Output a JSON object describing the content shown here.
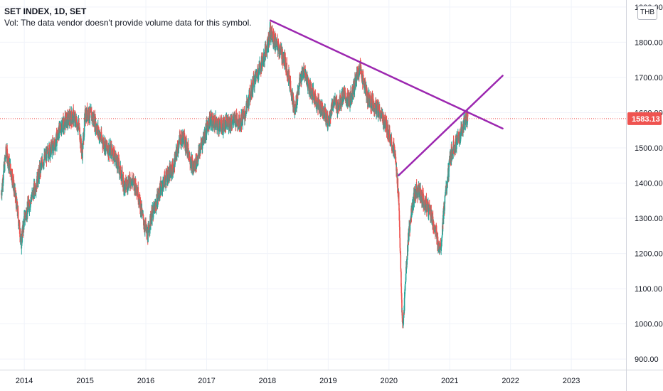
{
  "legend": {
    "title": "SET INDEX, 1D, SET",
    "volume_note": "Vol: The data vendor doesn't provide volume data for this symbol."
  },
  "currency": "THB",
  "last_price_label": "1583.13",
  "colors": {
    "up": "#26a69a",
    "down": "#ef5350",
    "trendline": "#9c27b0",
    "price_line": "#ef5350",
    "grid": "#f0f3fa",
    "axis_line": "#d1d4dc"
  },
  "chart_data": {
    "type": "candlestick",
    "title": "SET INDEX, 1D, SET",
    "y_axis": {
      "ticks": [
        900,
        1000,
        1100,
        1200,
        1300,
        1400,
        1500,
        1600,
        1700,
        1800,
        1900
      ],
      "tick_labels": [
        "900.00",
        "1000.00",
        "1100.00",
        "1200.00",
        "1300.00",
        "1400.00",
        "1500.00",
        "1600.00",
        "1700.00",
        "1800.00",
        "1900.00"
      ],
      "range": [
        870,
        1920
      ]
    },
    "x_axis": {
      "ticks": [
        "2014",
        "2015",
        "2016",
        "2017",
        "2018",
        "2019",
        "2020",
        "2021",
        "2022",
        "2023"
      ],
      "range": [
        2013.6,
        2023.9
      ]
    },
    "last_price": 1583.13,
    "price_path": [
      [
        2013.62,
        1370
      ],
      [
        2013.7,
        1490
      ],
      [
        2013.8,
        1420
      ],
      [
        2013.88,
        1330
      ],
      [
        2013.95,
        1230
      ],
      [
        2014.0,
        1300
      ],
      [
        2014.1,
        1350
      ],
      [
        2014.2,
        1400
      ],
      [
        2014.3,
        1460
      ],
      [
        2014.4,
        1490
      ],
      [
        2014.5,
        1510
      ],
      [
        2014.6,
        1560
      ],
      [
        2014.7,
        1580
      ],
      [
        2014.8,
        1590
      ],
      [
        2014.9,
        1560
      ],
      [
        2014.95,
        1480
      ],
      [
        2015.0,
        1590
      ],
      [
        2015.05,
        1600
      ],
      [
        2015.15,
        1580
      ],
      [
        2015.25,
        1530
      ],
      [
        2015.35,
        1500
      ],
      [
        2015.45,
        1490
      ],
      [
        2015.55,
        1450
      ],
      [
        2015.65,
        1390
      ],
      [
        2015.75,
        1410
      ],
      [
        2015.85,
        1390
      ],
      [
        2015.95,
        1300
      ],
      [
        2016.03,
        1250
      ],
      [
        2016.08,
        1300
      ],
      [
        2016.15,
        1330
      ],
      [
        2016.25,
        1390
      ],
      [
        2016.35,
        1420
      ],
      [
        2016.45,
        1440
      ],
      [
        2016.55,
        1520
      ],
      [
        2016.62,
        1530
      ],
      [
        2016.7,
        1490
      ],
      [
        2016.78,
        1440
      ],
      [
        2016.85,
        1470
      ],
      [
        2016.95,
        1530
      ],
      [
        2017.05,
        1580
      ],
      [
        2017.15,
        1570
      ],
      [
        2017.25,
        1560
      ],
      [
        2017.35,
        1570
      ],
      [
        2017.45,
        1580
      ],
      [
        2017.55,
        1575
      ],
      [
        2017.62,
        1590
      ],
      [
        2017.7,
        1640
      ],
      [
        2017.78,
        1690
      ],
      [
        2017.85,
        1720
      ],
      [
        2017.95,
        1760
      ],
      [
        2018.05,
        1830
      ],
      [
        2018.12,
        1800
      ],
      [
        2018.2,
        1780
      ],
      [
        2018.3,
        1740
      ],
      [
        2018.38,
        1680
      ],
      [
        2018.45,
        1600
      ],
      [
        2018.52,
        1680
      ],
      [
        2018.6,
        1720
      ],
      [
        2018.68,
        1680
      ],
      [
        2018.78,
        1640
      ],
      [
        2018.85,
        1620
      ],
      [
        2018.92,
        1610
      ],
      [
        2019.0,
        1570
      ],
      [
        2019.08,
        1630
      ],
      [
        2019.16,
        1620
      ],
      [
        2019.25,
        1650
      ],
      [
        2019.35,
        1630
      ],
      [
        2019.45,
        1690
      ],
      [
        2019.52,
        1730
      ],
      [
        2019.58,
        1690
      ],
      [
        2019.65,
        1640
      ],
      [
        2019.72,
        1630
      ],
      [
        2019.8,
        1610
      ],
      [
        2019.88,
        1590
      ],
      [
        2019.96,
        1560
      ],
      [
        2020.04,
        1520
      ],
      [
        2020.1,
        1480
      ],
      [
        2020.16,
        1360
      ],
      [
        2020.21,
        1050
      ],
      [
        2020.23,
        980
      ],
      [
        2020.27,
        1120
      ],
      [
        2020.32,
        1250
      ],
      [
        2020.38,
        1330
      ],
      [
        2020.45,
        1380
      ],
      [
        2020.52,
        1370
      ],
      [
        2020.6,
        1340
      ],
      [
        2020.68,
        1320
      ],
      [
        2020.75,
        1270
      ],
      [
        2020.82,
        1220
      ],
      [
        2020.86,
        1230
      ],
      [
        2020.9,
        1320
      ],
      [
        2020.95,
        1390
      ],
      [
        2021.0,
        1460
      ],
      [
        2021.05,
        1500
      ],
      [
        2021.1,
        1510
      ],
      [
        2021.18,
        1540
      ],
      [
        2021.25,
        1580
      ],
      [
        2021.3,
        1585
      ]
    ],
    "trendlines": [
      {
        "points": [
          [
            2018.05,
            1862
          ],
          [
            2021.87,
            1555
          ]
        ]
      },
      {
        "points": [
          [
            2020.16,
            1422
          ],
          [
            2021.87,
            1705
          ]
        ]
      }
    ]
  }
}
